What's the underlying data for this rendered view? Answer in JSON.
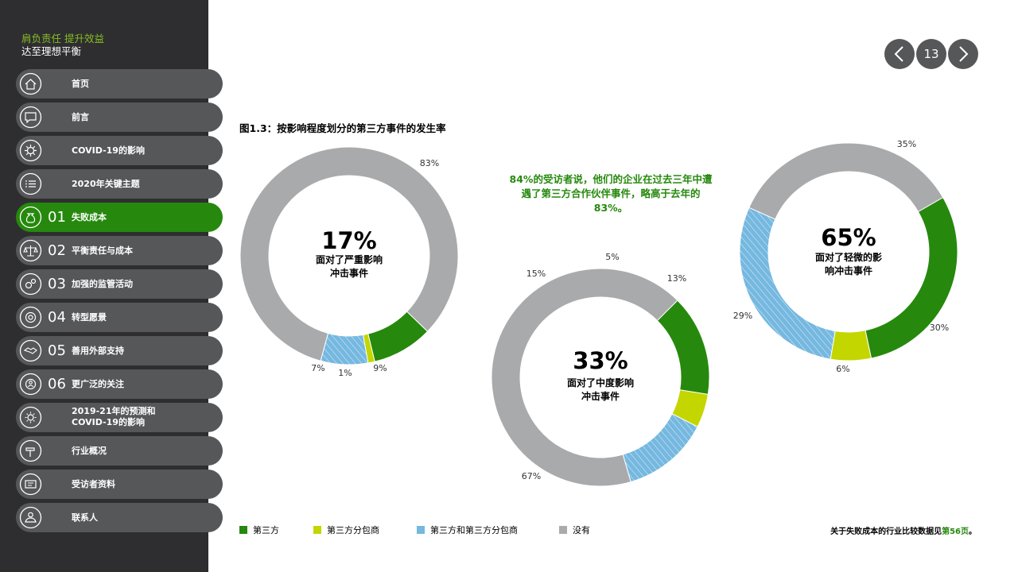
{
  "brand": {
    "line1": "肩负责任 提升效益",
    "line2": "达至理想平衡"
  },
  "pager": {
    "page": "13",
    "prev_icon": "chevron-left-icon",
    "next_icon": "chevron-right-icon"
  },
  "nav": [
    {
      "num": "",
      "label": "首页",
      "icon": "home-icon",
      "active": false
    },
    {
      "num": "",
      "label": "前言",
      "icon": "speech-bubble-icon",
      "active": false
    },
    {
      "num": "",
      "label": "COVID-19的影响",
      "icon": "virus-icon",
      "active": false
    },
    {
      "num": "",
      "label": "2020年关键主题",
      "icon": "list-icon",
      "active": false
    },
    {
      "num": "01",
      "label": "失败成本",
      "icon": "money-bag-icon",
      "active": true
    },
    {
      "num": "02",
      "label": "平衡责任与成本",
      "icon": "scales-icon",
      "active": false
    },
    {
      "num": "03",
      "label": "加强的监管活动",
      "icon": "gears-icon",
      "active": false
    },
    {
      "num": "04",
      "label": "转型愿景",
      "icon": "target-icon",
      "active": false
    },
    {
      "num": "05",
      "label": "善用外部支持",
      "icon": "handshake-icon",
      "active": false
    },
    {
      "num": "06",
      "label": "更广泛的关注",
      "icon": "people-circle-icon",
      "active": false
    },
    {
      "num": "",
      "label_line1": "2019-21年的预测和",
      "label_line2": "COVID-19的影响",
      "icon": "sun-icon",
      "active": false
    },
    {
      "num": "",
      "label": "行业概况",
      "icon": "hammer-icon",
      "active": false
    },
    {
      "num": "",
      "label": "受访者资料",
      "icon": "id-card-icon",
      "active": false
    },
    {
      "num": "",
      "label": "联系人",
      "icon": "contact-icon",
      "active": false
    }
  ],
  "figure": {
    "title": "图1.3：按影响程度划分的第三方事件的发生率",
    "callout": "84%的受访者说，他们的企业在过去三年中遭遇了第三方合作伙伴事件，略高于去年的83%。"
  },
  "chart_data": [
    {
      "type": "pie",
      "center_value": "17%",
      "center_label_line1": "面对了严重影响",
      "center_label_line2": "冲击事件",
      "categories": [
        "第三方",
        "第三方分包商",
        "第三方和第三方分包商",
        "没有"
      ],
      "values": [
        9,
        1,
        7,
        83
      ],
      "labels": [
        "9%",
        "1%",
        "7%",
        "83%"
      ]
    },
    {
      "type": "pie",
      "center_value": "33%",
      "center_label_line1": "面对了中度影响",
      "center_label_line2": "冲击事件",
      "categories": [
        "第三方",
        "第三方分包商",
        "第三方和第三方分包商",
        "没有"
      ],
      "values": [
        15,
        5,
        13,
        67
      ],
      "labels": [
        "15%",
        "5%",
        "13%",
        "67%"
      ]
    },
    {
      "type": "pie",
      "center_value": "65%",
      "center_label_line1": "面对了轻微的影",
      "center_label_line2": "响冲击事件",
      "categories": [
        "第三方",
        "第三方分包商",
        "第三方和第三方分包商",
        "没有"
      ],
      "values": [
        30,
        6,
        29,
        35
      ],
      "labels": [
        "30%",
        "6%",
        "29%",
        "35%"
      ]
    }
  ],
  "legend": [
    {
      "label": "第三方",
      "color": "#26890d"
    },
    {
      "label": "第三方分包商",
      "color": "#c4d600"
    },
    {
      "label": "第三方和第三方分包商",
      "color": "#75b8e0"
    },
    {
      "label": "没有",
      "color": "#a9aaac"
    }
  ],
  "footnote": {
    "text": "关于失败成本的行业比较数据见",
    "link": "第56页",
    "suffix": "。"
  }
}
